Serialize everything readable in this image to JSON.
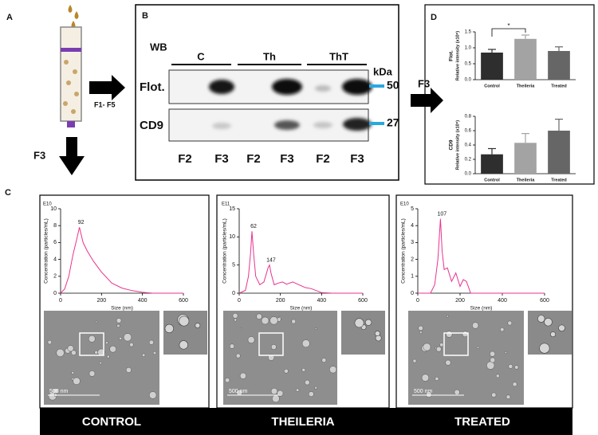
{
  "panel_a": {
    "letter": "A",
    "arrow_label": "F1- F5",
    "down_label": "F3"
  },
  "panel_b": {
    "letter": "B",
    "method": "WB",
    "groups": [
      "C",
      "Th",
      "ThT"
    ],
    "unit": "kDa",
    "rows": [
      {
        "name": "Flot.",
        "marker": "50"
      },
      {
        "name": "CD9",
        "marker": "27"
      }
    ],
    "lanes": [
      "F2",
      "F3",
      "F2",
      "F3",
      "F2",
      "F3"
    ],
    "arrow_label": "F3"
  },
  "panel_d": {
    "letter": "D"
  },
  "panel_c": {
    "letter": "C",
    "conditions": [
      "CONTROL",
      "THEILERIA",
      "TREATED"
    ],
    "scale_bars": [
      "500 nm",
      "500 nm",
      "500 nm"
    ]
  },
  "chart_data": [
    {
      "type": "bar",
      "ylabel": [
        "Flot.",
        "Relative intensity (x10⁶)"
      ],
      "categories": [
        "Control",
        "Theileria",
        "Treated"
      ],
      "values": [
        0.85,
        1.28,
        0.9
      ],
      "errors": [
        0.1,
        0.12,
        0.13
      ],
      "colors": [
        "#2e2e2e",
        "#a3a3a3",
        "#666666"
      ],
      "ylim": [
        0,
        1.5
      ],
      "yticks": [
        {
          "value": 0,
          "label": "0.0"
        },
        0.5,
        {
          "value": 1,
          "label": "1.0"
        },
        1.5
      ],
      "annotation": "*"
    },
    {
      "type": "bar",
      "ylabel": [
        "CD9",
        "Relative intensity (x10⁶)"
      ],
      "categories": [
        "Control",
        "Theileria",
        "Treated"
      ],
      "values": [
        0.27,
        0.43,
        0.6
      ],
      "errors": [
        0.08,
        0.13,
        0.16
      ],
      "colors": [
        "#2e2e2e",
        "#a3a3a3",
        "#666666"
      ],
      "ylim": [
        0,
        0.8
      ],
      "yticks": [
        {
          "value": 0,
          "label": "0.0"
        },
        0.2,
        0.4,
        0.6,
        0.8
      ]
    },
    {
      "type": "line",
      "exponent": "E10",
      "xlabel": "Size (nm)",
      "ylabel": "Concentration (particles/mL)",
      "color": "#e8338f",
      "x": [
        0,
        20,
        40,
        60,
        80,
        92,
        110,
        130,
        160,
        200,
        250,
        300,
        350,
        400,
        450,
        500,
        600
      ],
      "values": [
        0,
        0.5,
        2,
        4.5,
        6.5,
        7.8,
        6,
        5,
        3.8,
        2.5,
        1.2,
        0.6,
        0.3,
        0.1,
        0,
        0,
        0
      ],
      "xlim": [
        0,
        600
      ],
      "xticks": [
        0,
        200,
        400,
        600
      ],
      "ylim": [
        0,
        10
      ],
      "yticks": [
        0,
        2,
        4,
        6,
        8,
        10
      ],
      "annotations": [
        {
          "text": "92",
          "x": 92
        }
      ]
    },
    {
      "type": "line",
      "exponent": "E11",
      "xlabel": "Size (nm)",
      "ylabel": "Concentration (particles/mL)",
      "color": "#e8338f",
      "x": [
        0,
        30,
        45,
        55,
        62,
        70,
        80,
        100,
        120,
        140,
        147,
        155,
        170,
        190,
        210,
        230,
        260,
        290,
        320,
        350,
        400,
        450,
        500,
        600
      ],
      "values": [
        0,
        0.5,
        3,
        7,
        11,
        7,
        3,
        1.5,
        2,
        4.5,
        5,
        3.5,
        1.5,
        1.8,
        2,
        1.6,
        2,
        1.5,
        1,
        0.8,
        0.1,
        0,
        0,
        0
      ],
      "xlim": [
        0,
        600
      ],
      "xticks": [
        0,
        200,
        400,
        600
      ],
      "ylim": [
        0,
        15
      ],
      "yticks": [
        0,
        5,
        10,
        15
      ],
      "annotations": [
        {
          "text": "62",
          "x": 62
        },
        {
          "text": "147",
          "x": 147
        }
      ]
    },
    {
      "type": "line",
      "exponent": "E10",
      "xlabel": "Size (nm)",
      "ylabel": "Concentration (particles/mL)",
      "color": "#e8338f",
      "x": [
        0,
        60,
        80,
        95,
        107,
        115,
        125,
        140,
        160,
        180,
        200,
        215,
        230,
        250,
        270,
        300,
        600
      ],
      "values": [
        0,
        0,
        0.5,
        2,
        4.4,
        2.5,
        1.4,
        1.5,
        0.7,
        1.2,
        0.4,
        0.8,
        0.7,
        0,
        0,
        0,
        0
      ],
      "xlim": [
        0,
        600
      ],
      "xticks": [
        0,
        200,
        400,
        600
      ],
      "ylim": [
        0,
        5
      ],
      "yticks": [
        0,
        1,
        2,
        3,
        4,
        5
      ],
      "annotations": [
        {
          "text": "107",
          "x": 107
        }
      ]
    }
  ]
}
